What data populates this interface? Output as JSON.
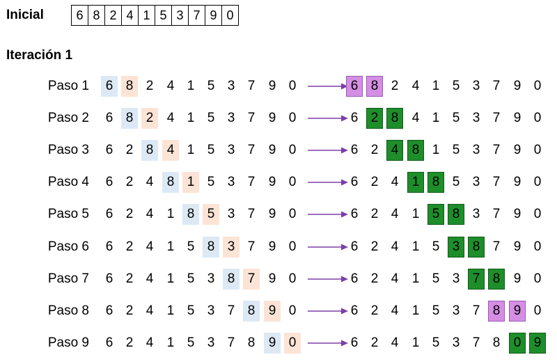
{
  "initial_label": "Inicial",
  "initial_array": [
    "6",
    "8",
    "2",
    "4",
    "1",
    "5",
    "3",
    "7",
    "9",
    "0"
  ],
  "iteration_title": "Iteración 1",
  "colors": {
    "compare_left": "#dce9f5",
    "compare_right": "#fbe4d6",
    "no_swap": "#d48ee3",
    "swap": "#1e8e2b",
    "arrow": "#7b3fa8"
  },
  "steps": [
    {
      "label": "Paso 1",
      "before": [
        "6",
        "8",
        "2",
        "4",
        "1",
        "5",
        "3",
        "7",
        "9",
        "0"
      ],
      "after": [
        "6",
        "8",
        "2",
        "4",
        "1",
        "5",
        "3",
        "7",
        "9",
        "0"
      ],
      "compare_index": 0,
      "result": "no_swap"
    },
    {
      "label": "Paso 2",
      "before": [
        "6",
        "8",
        "2",
        "4",
        "1",
        "5",
        "3",
        "7",
        "9",
        "0"
      ],
      "after": [
        "6",
        "2",
        "8",
        "4",
        "1",
        "5",
        "3",
        "7",
        "9",
        "0"
      ],
      "compare_index": 1,
      "result": "swap"
    },
    {
      "label": "Paso 3",
      "before": [
        "6",
        "2",
        "8",
        "4",
        "1",
        "5",
        "3",
        "7",
        "9",
        "0"
      ],
      "after": [
        "6",
        "2",
        "4",
        "8",
        "1",
        "5",
        "3",
        "7",
        "9",
        "0"
      ],
      "compare_index": 2,
      "result": "swap"
    },
    {
      "label": "Paso 4",
      "before": [
        "6",
        "2",
        "4",
        "8",
        "1",
        "5",
        "3",
        "7",
        "9",
        "0"
      ],
      "after": [
        "6",
        "2",
        "4",
        "1",
        "8",
        "5",
        "3",
        "7",
        "9",
        "0"
      ],
      "compare_index": 3,
      "result": "swap"
    },
    {
      "label": "Paso 5",
      "before": [
        "6",
        "2",
        "4",
        "1",
        "8",
        "5",
        "3",
        "7",
        "9",
        "0"
      ],
      "after": [
        "6",
        "2",
        "4",
        "1",
        "5",
        "8",
        "3",
        "7",
        "9",
        "0"
      ],
      "compare_index": 4,
      "result": "swap"
    },
    {
      "label": "Paso 6",
      "before": [
        "6",
        "2",
        "4",
        "1",
        "5",
        "8",
        "3",
        "7",
        "9",
        "0"
      ],
      "after": [
        "6",
        "2",
        "4",
        "1",
        "5",
        "3",
        "8",
        "7",
        "9",
        "0"
      ],
      "compare_index": 5,
      "result": "swap"
    },
    {
      "label": "Paso 7",
      "before": [
        "6",
        "2",
        "4",
        "1",
        "5",
        "3",
        "8",
        "7",
        "9",
        "0"
      ],
      "after": [
        "6",
        "2",
        "4",
        "1",
        "5",
        "3",
        "7",
        "8",
        "9",
        "0"
      ],
      "compare_index": 6,
      "result": "swap"
    },
    {
      "label": "Paso 8",
      "before": [
        "6",
        "2",
        "4",
        "1",
        "5",
        "3",
        "7",
        "8",
        "9",
        "0"
      ],
      "after": [
        "6",
        "2",
        "4",
        "1",
        "5",
        "3",
        "7",
        "8",
        "9",
        "0"
      ],
      "compare_index": 7,
      "result": "no_swap"
    },
    {
      "label": "Paso 9",
      "before": [
        "6",
        "2",
        "4",
        "1",
        "5",
        "3",
        "7",
        "8",
        "9",
        "0"
      ],
      "after": [
        "6",
        "2",
        "4",
        "1",
        "5",
        "3",
        "7",
        "8",
        "0",
        "9"
      ],
      "compare_index": 8,
      "result": "swap"
    }
  ]
}
